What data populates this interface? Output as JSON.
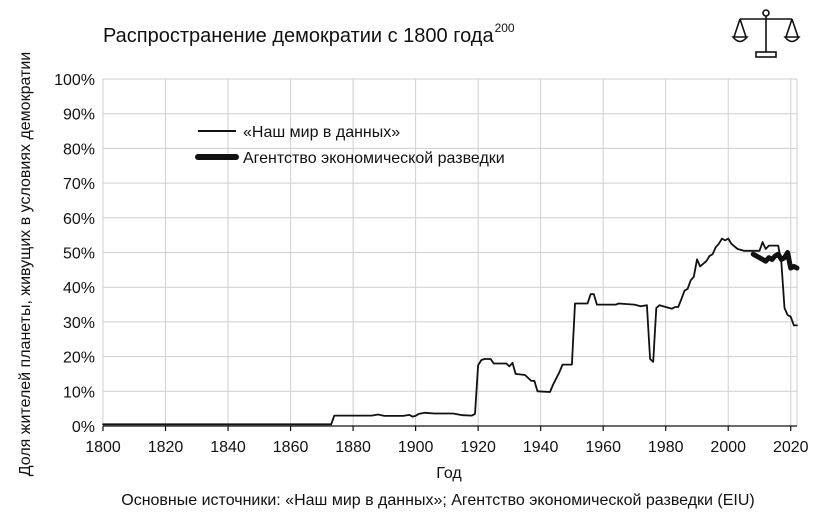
{
  "chart_data": {
    "type": "line",
    "title": "Распространение демократии с 1800 года",
    "title_superscript": "200",
    "xlabel": "Год",
    "ylabel": "Доля жителей планеты, живущих в условиях демократии",
    "source": "Основные источники: «Наш мир в данных»; Агентство экономической разведки (EIU)",
    "xlim": [
      1800,
      2022
    ],
    "ylim": [
      0,
      100
    ],
    "x_ticks": [
      "1800",
      "1820",
      "1840",
      "1860",
      "1880",
      "1900",
      "1920",
      "1940",
      "1960",
      "1980",
      "2000",
      "2020"
    ],
    "y_ticks": [
      "0%",
      "10%",
      "20%",
      "30%",
      "40%",
      "50%",
      "60%",
      "70%",
      "80%",
      "90%",
      "100%"
    ],
    "grid": true,
    "legend_position": "top-left",
    "series": [
      {
        "name": "«Наш мир в данных»",
        "style": "thin",
        "color": "#111111",
        "points": [
          [
            1800,
            0.5
          ],
          [
            1873,
            0.5
          ],
          [
            1874,
            3.0
          ],
          [
            1886,
            3.0
          ],
          [
            1888,
            3.3
          ],
          [
            1890,
            2.9
          ],
          [
            1896,
            2.9
          ],
          [
            1898,
            3.2
          ],
          [
            1899,
            2.7
          ],
          [
            1900,
            2.9
          ],
          [
            1901,
            3.5
          ],
          [
            1903,
            3.8
          ],
          [
            1906,
            3.6
          ],
          [
            1912,
            3.6
          ],
          [
            1915,
            3.1
          ],
          [
            1918,
            3.0
          ],
          [
            1919,
            3.5
          ],
          [
            1920,
            17.5
          ],
          [
            1921,
            19.0
          ],
          [
            1922,
            19.3
          ],
          [
            1924,
            19.3
          ],
          [
            1925,
            18.0
          ],
          [
            1929,
            18.0
          ],
          [
            1930,
            17.2
          ],
          [
            1931,
            18.2
          ],
          [
            1932,
            15.0
          ],
          [
            1935,
            14.7
          ],
          [
            1937,
            13.0
          ],
          [
            1938,
            13.0
          ],
          [
            1939,
            10.0
          ],
          [
            1943,
            9.8
          ],
          [
            1944,
            12.0
          ],
          [
            1946,
            15.5
          ],
          [
            1947,
            17.7
          ],
          [
            1949,
            17.7
          ],
          [
            1950,
            17.7
          ],
          [
            1951,
            35.3
          ],
          [
            1955,
            35.3
          ],
          [
            1956,
            38.0
          ],
          [
            1957,
            38.0
          ],
          [
            1958,
            35.0
          ],
          [
            1964,
            35.0
          ],
          [
            1965,
            35.3
          ],
          [
            1970,
            35.0
          ],
          [
            1972,
            34.5
          ],
          [
            1974,
            34.8
          ],
          [
            1975,
            19.3
          ],
          [
            1976,
            18.5
          ],
          [
            1977,
            34.0
          ],
          [
            1978,
            34.8
          ],
          [
            1980,
            34.3
          ],
          [
            1982,
            33.8
          ],
          [
            1983,
            34.3
          ],
          [
            1984,
            34.3
          ],
          [
            1985,
            36.5
          ],
          [
            1986,
            39.0
          ],
          [
            1987,
            39.5
          ],
          [
            1988,
            42.0
          ],
          [
            1989,
            43.0
          ],
          [
            1990,
            48.0
          ],
          [
            1991,
            46.0
          ],
          [
            1993,
            47.5
          ],
          [
            1994,
            49.0
          ],
          [
            1995,
            49.5
          ],
          [
            1996,
            51.5
          ],
          [
            1997,
            52.5
          ],
          [
            1998,
            54.0
          ],
          [
            1999,
            53.5
          ],
          [
            2000,
            54.0
          ],
          [
            2001,
            52.5
          ],
          [
            2003,
            51.0
          ],
          [
            2005,
            50.5
          ],
          [
            2010,
            50.5
          ],
          [
            2011,
            53.0
          ],
          [
            2012,
            51.0
          ],
          [
            2013,
            52.0
          ],
          [
            2016,
            52.0
          ],
          [
            2017,
            47.0
          ],
          [
            2018,
            34.0
          ],
          [
            2019,
            32.0
          ],
          [
            2020,
            31.5
          ],
          [
            2021,
            29.0
          ],
          [
            2022,
            29.0
          ]
        ]
      },
      {
        "name": "Агентство экономической разведки",
        "style": "thick",
        "color": "#111111",
        "points": [
          [
            2008,
            49.5
          ],
          [
            2010,
            48.5
          ],
          [
            2011,
            48.0
          ],
          [
            2012,
            47.5
          ],
          [
            2013,
            48.5
          ],
          [
            2014,
            48.0
          ],
          [
            2015,
            49.0
          ],
          [
            2016,
            49.5
          ],
          [
            2017,
            48.0
          ],
          [
            2018,
            48.5
          ],
          [
            2019,
            50.0
          ],
          [
            2020,
            45.5
          ],
          [
            2021,
            46.0
          ],
          [
            2022,
            45.5
          ]
        ]
      }
    ]
  },
  "logo": {
    "icon": "scales-icon",
    "color": "#111111"
  }
}
